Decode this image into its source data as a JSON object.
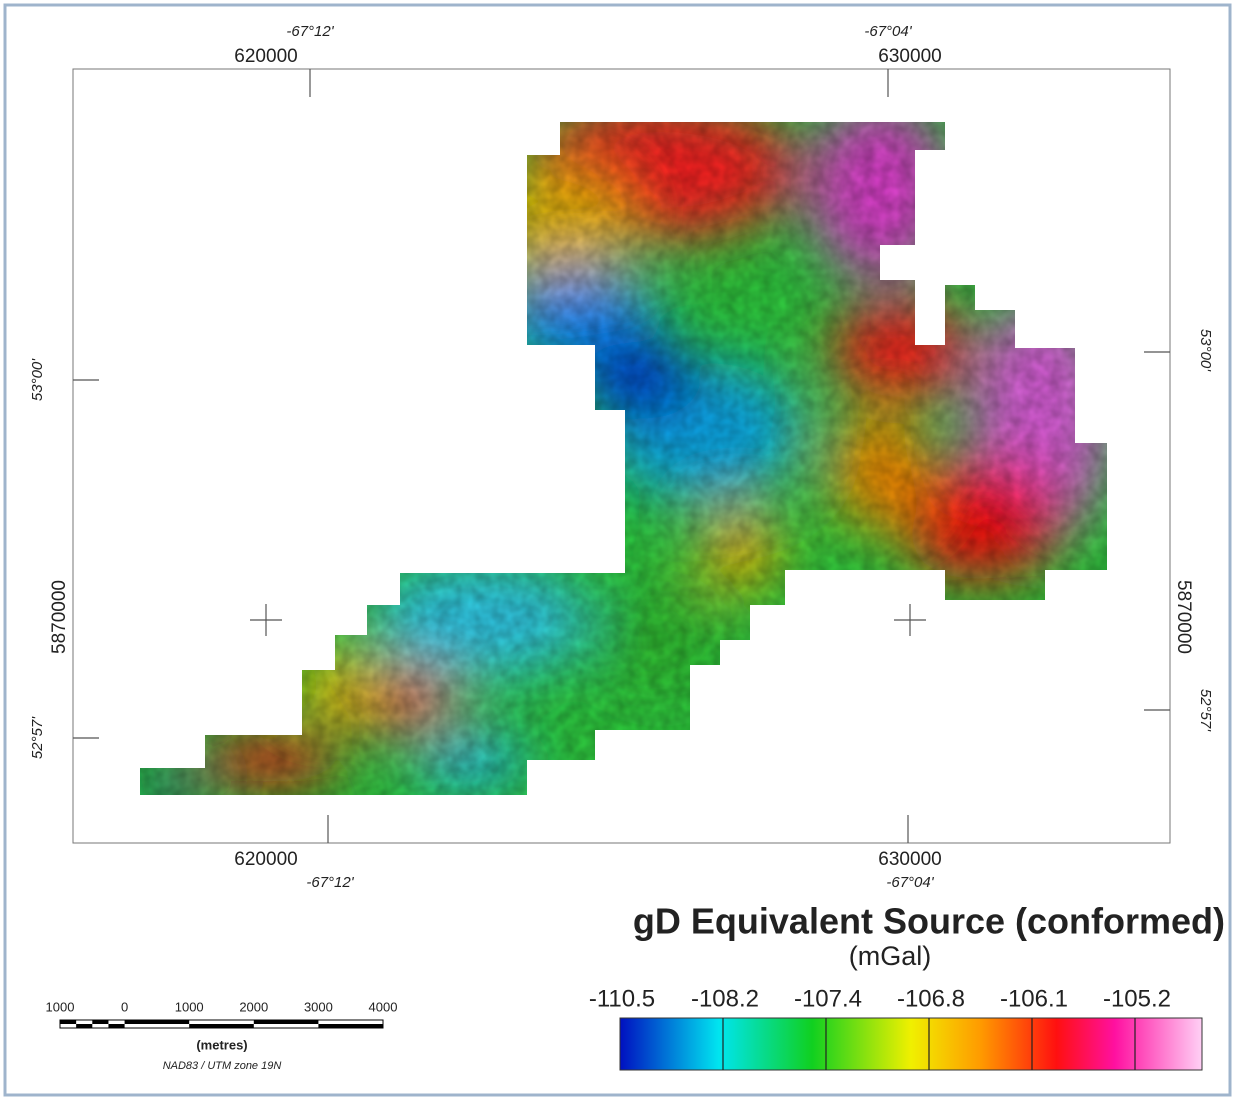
{
  "graticule": {
    "top": {
      "longitudes": [
        "-67°12'",
        "-67°04'"
      ],
      "eastings": [
        620000,
        630000
      ]
    },
    "bottom": {
      "longitudes": [
        "-67°12'",
        "-67°04'"
      ],
      "eastings": [
        620000,
        630000
      ]
    },
    "left": {
      "latitudes": [
        "53°00'",
        "52°57'"
      ],
      "northing": 5870000
    },
    "right": {
      "latitudes": [
        "53°00'",
        "52°57'"
      ],
      "northing": 5870000
    }
  },
  "legend": {
    "title": "gD Equivalent Source (conformed)",
    "unit": "(mGal)",
    "breaks": [
      -110.5,
      -108.2,
      -107.4,
      -106.8,
      -106.1,
      -105.2
    ]
  },
  "scale_bar": {
    "labels": [
      1000,
      0,
      1000,
      2000,
      3000,
      4000
    ],
    "unit": "(metres)",
    "projection": "NAD83 / UTM zone 19N"
  }
}
